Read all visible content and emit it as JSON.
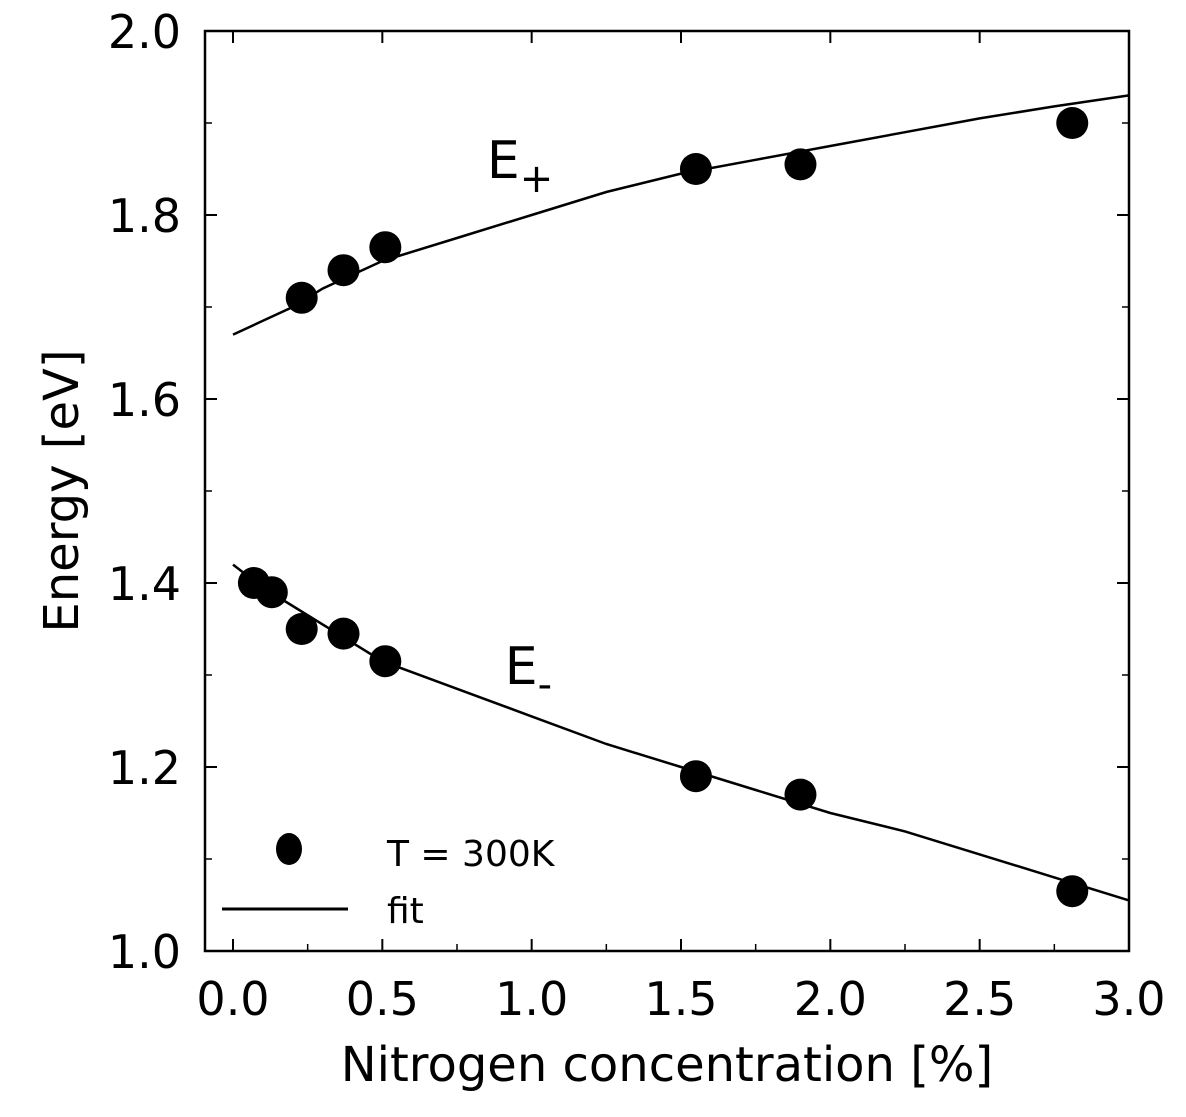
{
  "chart_data": {
    "type": "scatter",
    "xlabel": "Nitrogen concentration [%]",
    "ylabel": "Energy [eV]",
    "xlim": [
      0.0,
      3.0
    ],
    "ylim": [
      1.0,
      2.0
    ],
    "x_ticks": [
      0.0,
      0.5,
      1.0,
      1.5,
      2.0,
      2.5,
      3.0
    ],
    "x_tick_labels": [
      "0.0",
      "0.5",
      "1.0",
      "1.5",
      "2.0",
      "2.5",
      "3.0"
    ],
    "y_ticks": [
      1.0,
      1.2,
      1.4,
      1.6,
      1.8,
      2.0
    ],
    "y_tick_labels": [
      "1.0",
      "1.2",
      "1.4",
      "1.6",
      "1.8",
      "2.0"
    ],
    "grid": false,
    "legend_position": "bottom-left",
    "series": [
      {
        "name": "T = 300K",
        "kind": "points",
        "color": "#000000",
        "points": [
          {
            "x": 0.23,
            "y": 1.71
          },
          {
            "x": 0.37,
            "y": 1.74
          },
          {
            "x": 0.51,
            "y": 1.765
          },
          {
            "x": 1.55,
            "y": 1.85
          },
          {
            "x": 1.9,
            "y": 1.855
          },
          {
            "x": 2.81,
            "y": 1.9
          },
          {
            "x": 0.07,
            "y": 1.4
          },
          {
            "x": 0.13,
            "y": 1.39
          },
          {
            "x": 0.23,
            "y": 1.35
          },
          {
            "x": 0.37,
            "y": 1.345
          },
          {
            "x": 0.51,
            "y": 1.315
          },
          {
            "x": 1.55,
            "y": 1.19
          },
          {
            "x": 1.9,
            "y": 1.17
          },
          {
            "x": 2.81,
            "y": 1.065
          }
        ]
      },
      {
        "name": "fit",
        "kind": "line",
        "color": "#000000",
        "curves": [
          {
            "label": "E+",
            "points": [
              {
                "x": 0.0,
                "y": 1.67
              },
              {
                "x": 0.1,
                "y": 1.685
              },
              {
                "x": 0.2,
                "y": 1.7
              },
              {
                "x": 0.3,
                "y": 1.72
              },
              {
                "x": 0.4,
                "y": 1.735
              },
              {
                "x": 0.5,
                "y": 1.75
              },
              {
                "x": 0.75,
                "y": 1.775
              },
              {
                "x": 1.0,
                "y": 1.8
              },
              {
                "x": 1.25,
                "y": 1.825
              },
              {
                "x": 1.5,
                "y": 1.845
              },
              {
                "x": 1.75,
                "y": 1.86
              },
              {
                "x": 2.0,
                "y": 1.875
              },
              {
                "x": 2.25,
                "y": 1.89
              },
              {
                "x": 2.5,
                "y": 1.905
              },
              {
                "x": 2.75,
                "y": 1.918
              },
              {
                "x": 3.0,
                "y": 1.93
              }
            ]
          },
          {
            "label": "E-",
            "points": [
              {
                "x": 0.0,
                "y": 1.42
              },
              {
                "x": 0.1,
                "y": 1.395
              },
              {
                "x": 0.2,
                "y": 1.375
              },
              {
                "x": 0.3,
                "y": 1.355
              },
              {
                "x": 0.4,
                "y": 1.335
              },
              {
                "x": 0.5,
                "y": 1.315
              },
              {
                "x": 0.75,
                "y": 1.285
              },
              {
                "x": 1.0,
                "y": 1.255
              },
              {
                "x": 1.25,
                "y": 1.225
              },
              {
                "x": 1.5,
                "y": 1.2
              },
              {
                "x": 1.75,
                "y": 1.175
              },
              {
                "x": 2.0,
                "y": 1.15
              },
              {
                "x": 2.25,
                "y": 1.13
              },
              {
                "x": 2.5,
                "y": 1.105
              },
              {
                "x": 2.75,
                "y": 1.08
              },
              {
                "x": 3.0,
                "y": 1.055
              }
            ]
          }
        ]
      }
    ],
    "annotations": [
      {
        "main": "E",
        "sub": "+",
        "x": 0.85,
        "y": 1.84
      },
      {
        "main": "E",
        "sub": "-",
        "x": 0.91,
        "y": 1.29
      }
    ]
  }
}
